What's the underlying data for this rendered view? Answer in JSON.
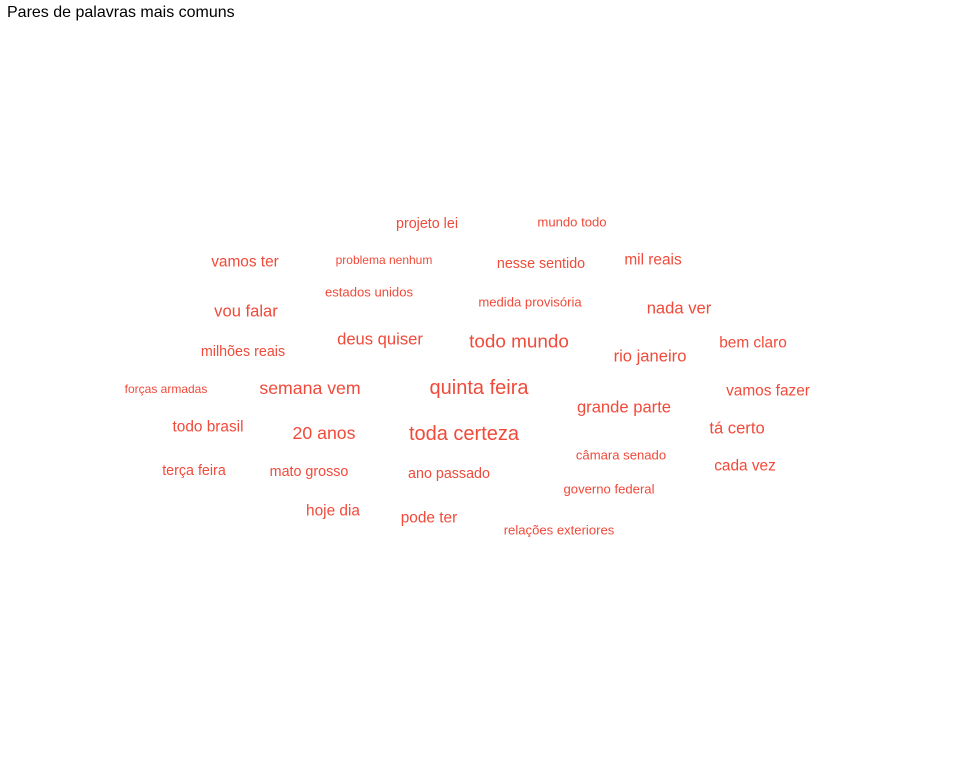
{
  "chart_data": {
    "type": "wordcloud",
    "title": "Pares de palavras mais comuns",
    "color": "#f04a3a",
    "words": [
      {
        "text": "quinta feira",
        "value": 10
      },
      {
        "text": "toda certeza",
        "value": 10
      },
      {
        "text": "todo mundo",
        "value": 9
      },
      {
        "text": "semana vem",
        "value": 8
      },
      {
        "text": "20 anos",
        "value": 8
      },
      {
        "text": "deus quiser",
        "value": 7
      },
      {
        "text": "grande parte",
        "value": 7
      },
      {
        "text": "nada ver",
        "value": 7
      },
      {
        "text": "rio janeiro",
        "value": 7
      },
      {
        "text": "vou falar",
        "value": 7
      },
      {
        "text": "tá certo",
        "value": 7
      },
      {
        "text": "pode ter",
        "value": 6
      },
      {
        "text": "hoje dia",
        "value": 6
      },
      {
        "text": "todo brasil",
        "value": 6
      },
      {
        "text": "mil reais",
        "value": 6
      },
      {
        "text": "vamos fazer",
        "value": 6
      },
      {
        "text": "vamos ter",
        "value": 6
      },
      {
        "text": "cada vez",
        "value": 6
      },
      {
        "text": "bem claro",
        "value": 6
      },
      {
        "text": "nesse sentido",
        "value": 5
      },
      {
        "text": "ano passado",
        "value": 5
      },
      {
        "text": "mato grosso",
        "value": 5
      },
      {
        "text": "terça feira",
        "value": 5
      },
      {
        "text": "milhões reais",
        "value": 5
      },
      {
        "text": "projeto lei",
        "value": 5
      },
      {
        "text": "câmara senado",
        "value": 4
      },
      {
        "text": "mundo todo",
        "value": 4
      },
      {
        "text": "estados unidos",
        "value": 4
      },
      {
        "text": "medida provisória",
        "value": 4
      },
      {
        "text": "governo federal",
        "value": 4
      },
      {
        "text": "relações exteriores",
        "value": 4
      },
      {
        "text": "problema nenhum",
        "value": 3
      },
      {
        "text": "forças armadas",
        "value": 3
      }
    ]
  }
}
